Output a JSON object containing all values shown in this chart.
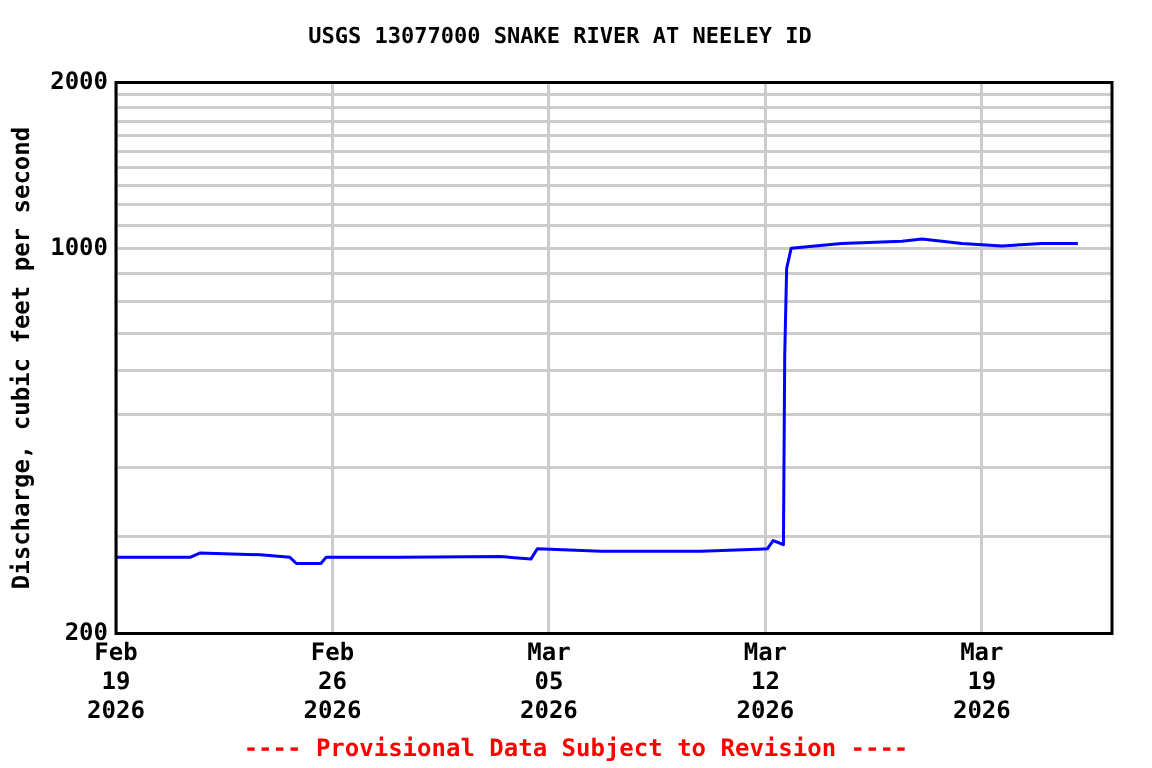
{
  "chart_data": {
    "type": "line",
    "title": "USGS 13077000 SNAKE RIVER AT NEELEY ID",
    "ylabel": "Discharge, cubic feet per second",
    "x": [
      "2026-02-19T00:00",
      "2026-02-21T09:30",
      "2026-02-21T17:00",
      "2026-02-23T16:00",
      "2026-02-24T15:00",
      "2026-02-24T20:00",
      "2026-02-25T15:00",
      "2026-02-25T19:00",
      "2026-02-28T05:00",
      "2026-03-03T10:30",
      "2026-03-04T10:00",
      "2026-03-04T15:00",
      "2026-03-06T16:30",
      "2026-03-09T22:00",
      "2026-03-12T01:30",
      "2026-03-12T06:00",
      "2026-03-12T11:00",
      "2026-03-12T14:00",
      "2026-03-12T15:00",
      "2026-03-12T16:30",
      "2026-03-12T20:00",
      "2026-03-14T11:00",
      "2026-03-16T10:00",
      "2026-03-17T01:30",
      "2026-03-18T08:30",
      "2026-03-19T15:30",
      "2026-03-20T22:30",
      "2026-03-22T02:30"
    ],
    "series": [
      {
        "color": "#0000ff",
        "values": [
          275,
          275,
          280,
          278,
          275,
          268,
          268,
          275,
          275,
          276,
          273,
          285,
          282,
          282,
          285,
          295,
          292,
          290,
          640,
          920,
          1000,
          1020,
          1030,
          1040,
          1020,
          1010,
          1020,
          1020
        ]
      }
    ],
    "xlim": [
      "2026-02-19T00:00",
      "2026-03-23T05:00"
    ],
    "xticks": [
      {
        "value": "2026-02-19",
        "label": "Feb 19 2026"
      },
      {
        "value": "2026-02-26",
        "label": "Feb 26 2026"
      },
      {
        "value": "2026-03-05",
        "label": "Mar 05 2026"
      },
      {
        "value": "2026-03-12",
        "label": "Mar 12 2026"
      },
      {
        "value": "2026-03-19",
        "label": "Mar 19 2026"
      }
    ],
    "ylim": [
      200,
      2000
    ],
    "log": "y",
    "yticks": [
      200,
      {
        "value": 300,
        "label": null
      },
      {
        "value": 400,
        "label": null
      },
      {
        "value": 500,
        "label": null
      },
      {
        "value": 600,
        "label": null
      },
      {
        "value": 700,
        "label": null
      },
      {
        "value": 800,
        "label": null
      },
      {
        "value": 900,
        "label": null
      },
      1000,
      {
        "value": 1100,
        "label": null
      },
      {
        "value": 1200,
        "label": null
      },
      {
        "value": 1300,
        "label": null
      },
      {
        "value": 1400,
        "label": null
      },
      {
        "value": 1500,
        "label": null
      },
      {
        "value": 1600,
        "label": null
      },
      {
        "value": 1700,
        "label": null
      },
      {
        "value": 1800,
        "label": null
      },
      {
        "value": 1900,
        "label": null
      },
      2000
    ],
    "grid": true,
    "legend": false,
    "marker": "none",
    "line_style": "solid",
    "annotations": [
      "---- Provisional Data Subject to Revision ----"
    ]
  }
}
